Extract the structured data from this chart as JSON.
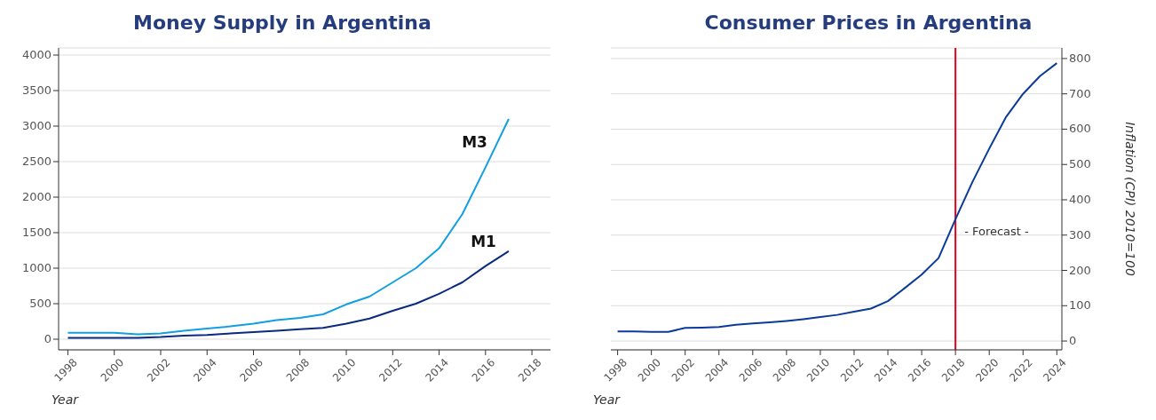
{
  "chart_data": [
    {
      "type": "line",
      "title": "Money Supply in Argentina",
      "xlabel": "Year",
      "x": [
        1998,
        1999,
        2000,
        2001,
        2002,
        2003,
        2004,
        2005,
        2006,
        2007,
        2008,
        2009,
        2010,
        2011,
        2012,
        2013,
        2014,
        2015,
        2016,
        2017
      ],
      "series": [
        {
          "name": "M1",
          "color": "#0a2a80",
          "values": [
            20,
            20,
            20,
            20,
            30,
            50,
            60,
            80,
            100,
            120,
            140,
            160,
            220,
            290,
            400,
            500,
            640,
            800,
            1030,
            1240
          ]
        },
        {
          "name": "M3",
          "color": "#129fe0",
          "values": [
            90,
            90,
            90,
            70,
            80,
            120,
            150,
            180,
            220,
            270,
            300,
            350,
            490,
            600,
            800,
            1000,
            1280,
            1760,
            2420,
            3100
          ]
        }
      ],
      "xlim": [
        1997.6,
        2018.8
      ],
      "xticks": [
        1998,
        2000,
        2002,
        2004,
        2006,
        2008,
        2010,
        2012,
        2014,
        2016,
        2018
      ],
      "ylim": [
        -150,
        4100
      ],
      "yticks": [
        0,
        500,
        1000,
        1500,
        2000,
        2500,
        3000,
        3500,
        4000
      ],
      "grid": "y",
      "legend": false,
      "marker": "none",
      "line_style": "solid"
    },
    {
      "type": "line",
      "title": "Consumer Prices in Argentina",
      "xlabel": "Year",
      "y2label": "Inflation (CPI) 2010=100",
      "x": [
        1998,
        1999,
        2000,
        2001,
        2002,
        2003,
        2004,
        2005,
        2006,
        2007,
        2008,
        2009,
        2010,
        2011,
        2012,
        2013,
        2014,
        2015,
        2016,
        2017,
        2018,
        2019,
        2020,
        2021,
        2022,
        2023,
        2024
      ],
      "series": [
        {
          "axis": "y2",
          "color": "#0a3a9a",
          "values": [
            27,
            27,
            26,
            26,
            37,
            38,
            40,
            46,
            50,
            53,
            57,
            62,
            68,
            74,
            83,
            92,
            113,
            150,
            188,
            235,
            345,
            450,
            545,
            635,
            700,
            750,
            787
          ]
        }
      ],
      "xlim": [
        1997.6,
        2024.3
      ],
      "xticks": [
        1998,
        2000,
        2002,
        2004,
        2006,
        2008,
        2010,
        2012,
        2014,
        2016,
        2018,
        2020,
        2022,
        2024
      ],
      "y2lim": [
        -25,
        830
      ],
      "y2ticks": [
        0,
        100,
        200,
        300,
        400,
        500,
        600,
        700,
        800
      ],
      "grid": "y",
      "legend": false,
      "marker": "none",
      "line_style": "solid",
      "ref_lines": [
        {
          "axis": "x",
          "value": 2018,
          "label": "- Forecast -",
          "color": "#e3001b",
          "line_style": "solid"
        }
      ]
    }
  ]
}
